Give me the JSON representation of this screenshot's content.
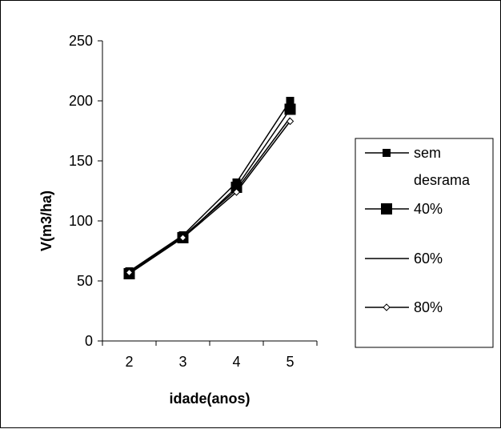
{
  "chart_data": {
    "type": "line",
    "title": "",
    "xlabel": "idade(anos)",
    "ylabel": "V(m3/ha)",
    "categories": [
      "2",
      "3",
      "4",
      "5"
    ],
    "ylim": [
      0,
      250
    ],
    "yticks": [
      0,
      50,
      100,
      150,
      200,
      250
    ],
    "grid": false,
    "legend_position": "right",
    "series": [
      {
        "name": "sem desrama",
        "marker": "square-small",
        "values": [
          58,
          88,
          132,
          200
        ]
      },
      {
        "name": "40%",
        "marker": "square-large",
        "values": [
          56,
          86,
          128,
          193
        ]
      },
      {
        "name": "60%",
        "marker": "none",
        "values": [
          57,
          87,
          126,
          186
        ]
      },
      {
        "name": "80%",
        "marker": "diamond",
        "values": [
          57,
          86,
          124,
          183
        ]
      }
    ]
  }
}
